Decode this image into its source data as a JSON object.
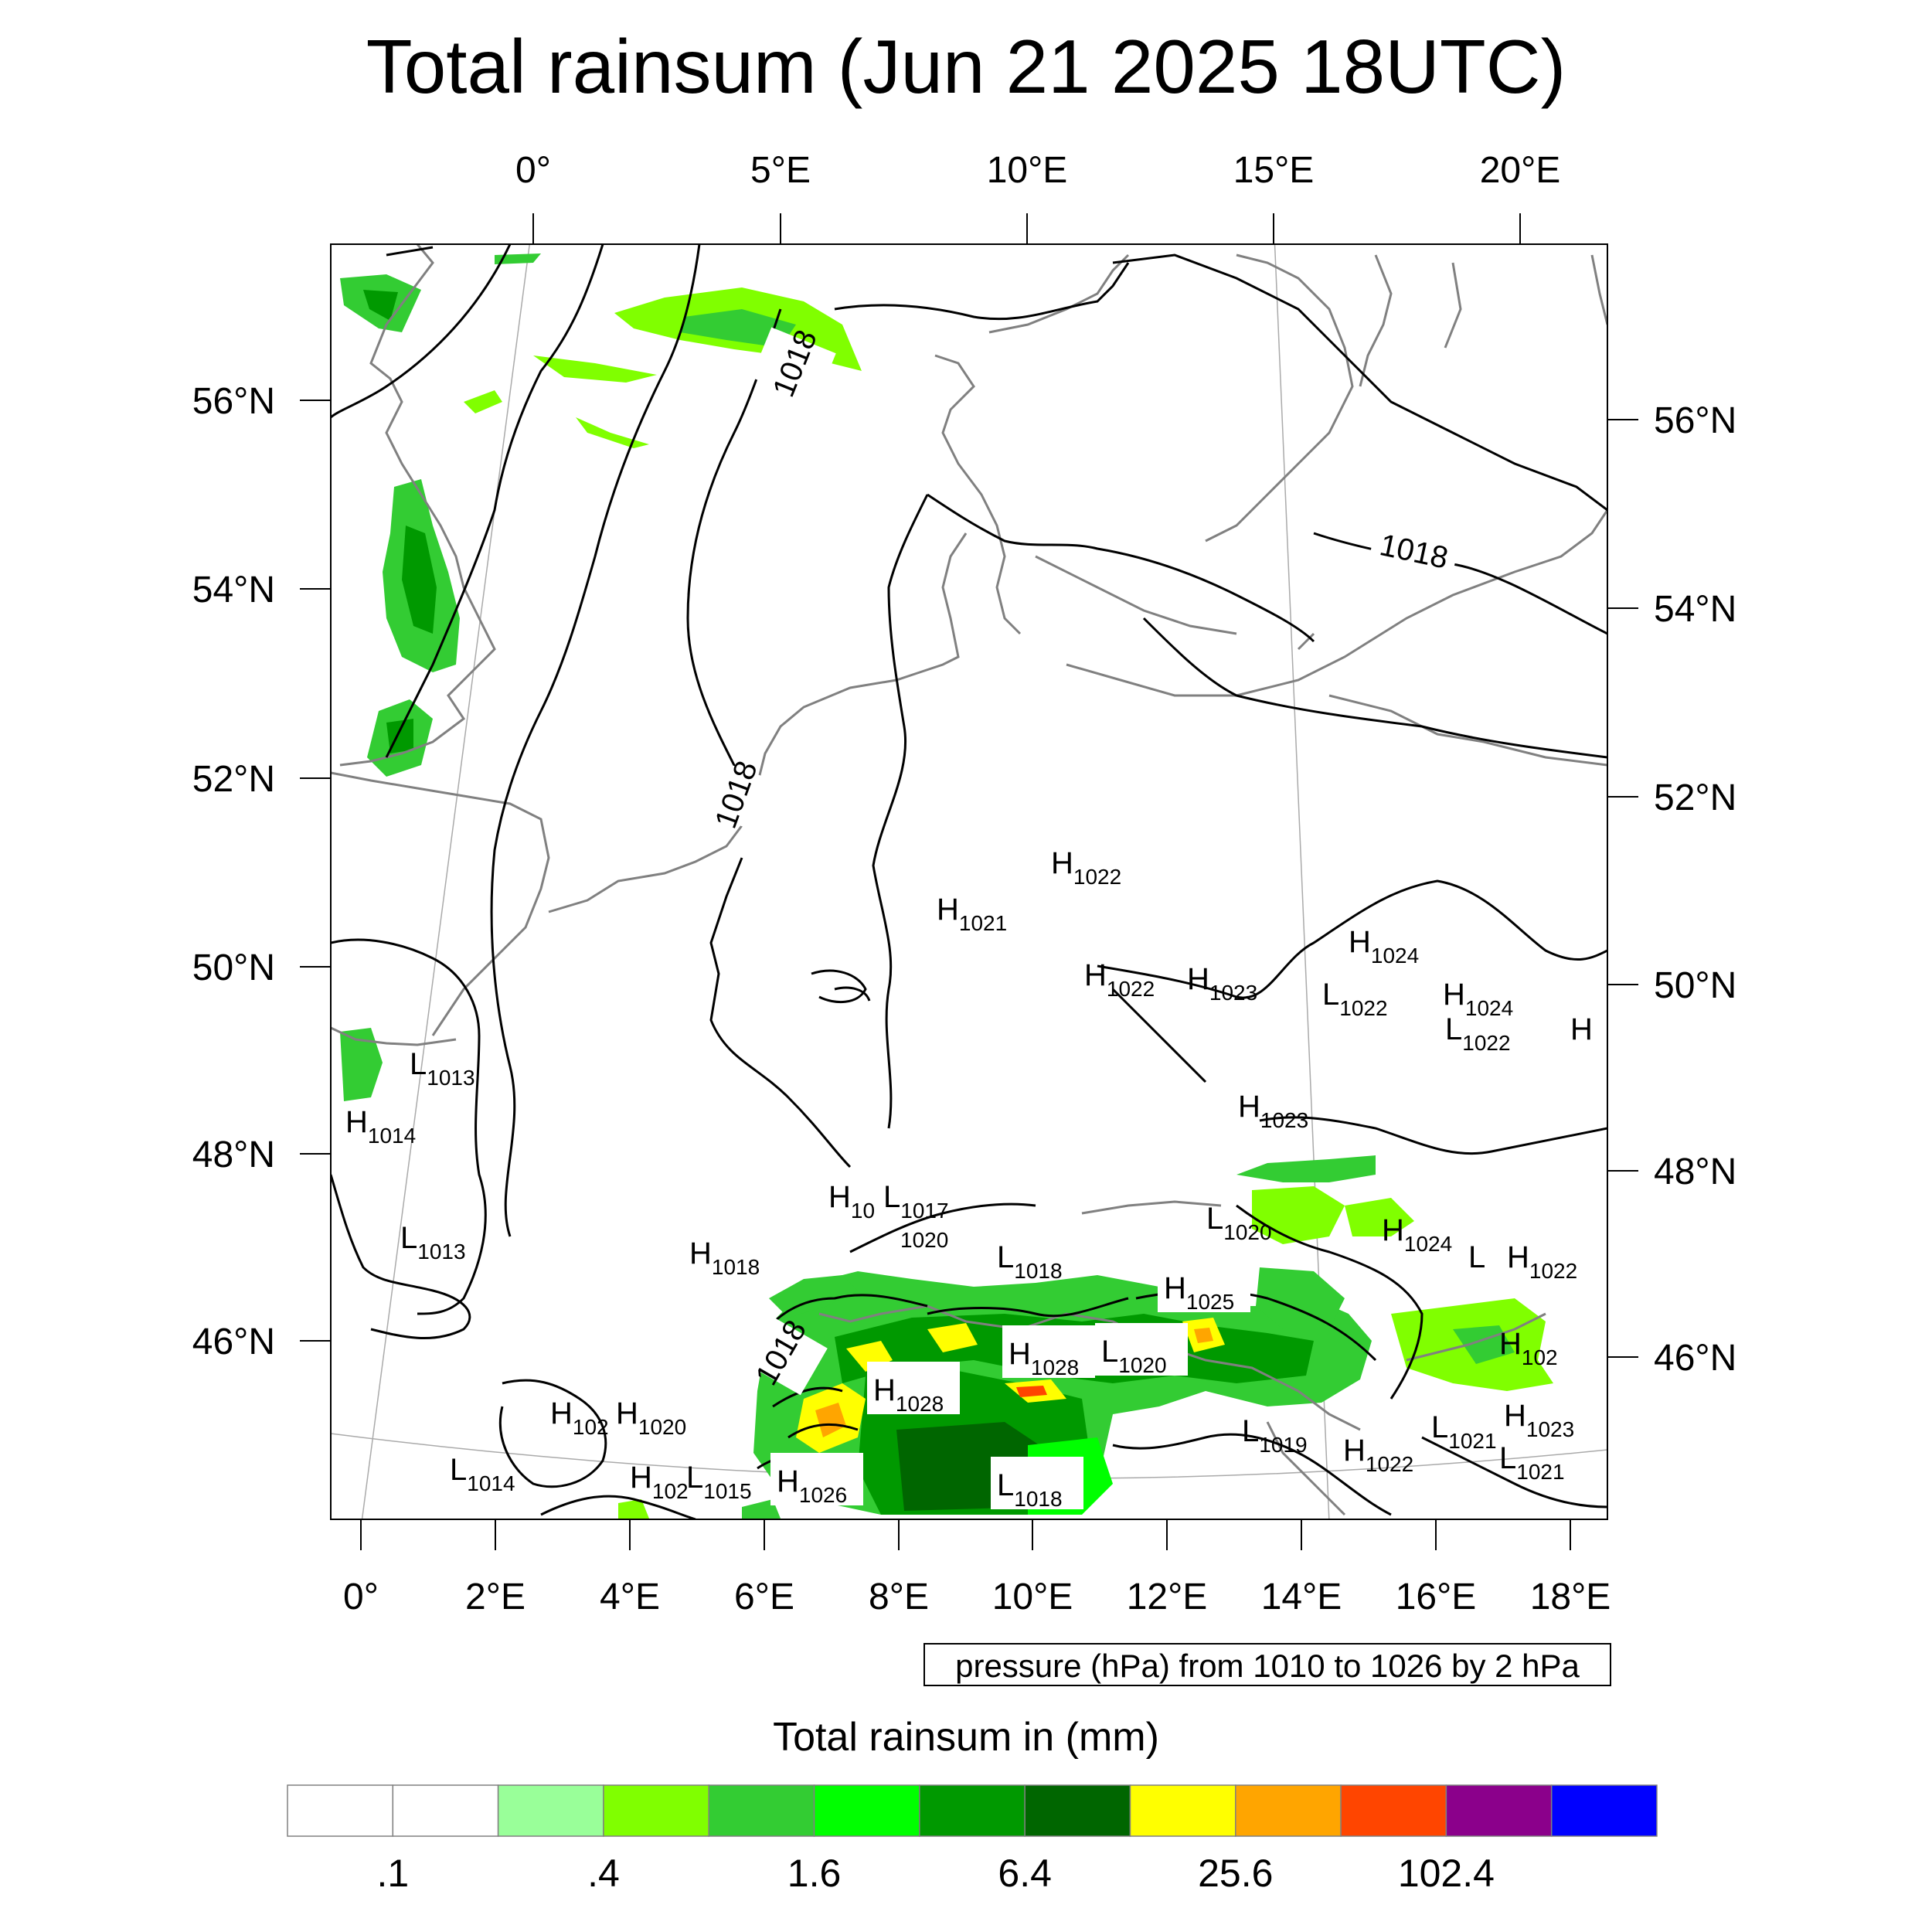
{
  "title": "Total rainsum (Jun 21 2025 18UTC)",
  "pressure_note": "pressure (hPa) from 1010 to 1026 by 2 hPa",
  "colorbar": {
    "title": "Total rainsum in (mm)",
    "colors": [
      "#ffffff",
      "#ffffff",
      "#99ff99",
      "#80ff00",
      "#33cc33",
      "#00ff00",
      "#009900",
      "#006600",
      "#ffff00",
      "#ffa500",
      "#ff4500",
      "#8b008b",
      "#0000ff"
    ],
    "labels": [
      ".1",
      ".4",
      "1.6",
      "6.4",
      "25.6",
      "102.4"
    ]
  },
  "axes": {
    "top_lon_labels": [
      "0°",
      "5°E",
      "10°E",
      "15°E",
      "20°E"
    ],
    "bottom_lon_labels": [
      "0°",
      "2°E",
      "4°E",
      "6°E",
      "8°E",
      "10°E",
      "12°E",
      "14°E",
      "16°E",
      "18°E"
    ],
    "left_lat_labels": [
      "56°N",
      "54°N",
      "52°N",
      "50°N",
      "48°N",
      "46°N"
    ],
    "right_lat_labels": [
      "56°N",
      "54°N",
      "52°N",
      "50°N",
      "48°N",
      "46°N"
    ]
  },
  "isobar_labels": [
    "1018",
    "1018",
    "1018",
    "1018"
  ],
  "pressure_centers": [
    {
      "type": "H",
      "value": "1022"
    },
    {
      "type": "H",
      "value": "1021"
    },
    {
      "type": "H",
      "value": "1024"
    },
    {
      "type": "H",
      "value": "1022"
    },
    {
      "type": "H",
      "value": "1023"
    },
    {
      "type": "L",
      "value": "1022"
    },
    {
      "type": "H",
      "value": "1024"
    },
    {
      "type": "L",
      "value": "1022"
    },
    {
      "type": "H",
      "value": ""
    },
    {
      "type": "L",
      "value": "1013"
    },
    {
      "type": "H",
      "value": "1014"
    },
    {
      "type": "H",
      "value": "1023"
    },
    {
      "type": "H",
      "value": "10"
    },
    {
      "type": "L",
      "value": "1017"
    },
    {
      "type": "",
      "value": "1020"
    },
    {
      "type": "L",
      "value": "1020"
    },
    {
      "type": "H",
      "value": "1024"
    },
    {
      "type": "L",
      "value": ""
    },
    {
      "type": "H",
      "value": "1022"
    },
    {
      "type": "L",
      "value": "1013"
    },
    {
      "type": "H",
      "value": "1018"
    },
    {
      "type": "L",
      "value": "1018"
    },
    {
      "type": "H",
      "value": "1025"
    },
    {
      "type": "H",
      "value": "1028"
    },
    {
      "type": "L",
      "value": "1020"
    },
    {
      "type": "H",
      "value": "102"
    },
    {
      "type": "H",
      "value": "1028"
    },
    {
      "type": "H",
      "value": "102"
    },
    {
      "type": "H",
      "value": "1020"
    },
    {
      "type": "H",
      "value": "1023"
    },
    {
      "type": "L",
      "value": "1019"
    },
    {
      "type": "H",
      "value": "1022"
    },
    {
      "type": "L",
      "value": "1021"
    },
    {
      "type": "L",
      "value": "1021"
    },
    {
      "type": "L",
      "value": "1014"
    },
    {
      "type": "H",
      "value": "102"
    },
    {
      "type": "L",
      "value": "1015"
    },
    {
      "type": "H",
      "value": "1026"
    },
    {
      "type": "L",
      "value": "1018"
    }
  ]
}
